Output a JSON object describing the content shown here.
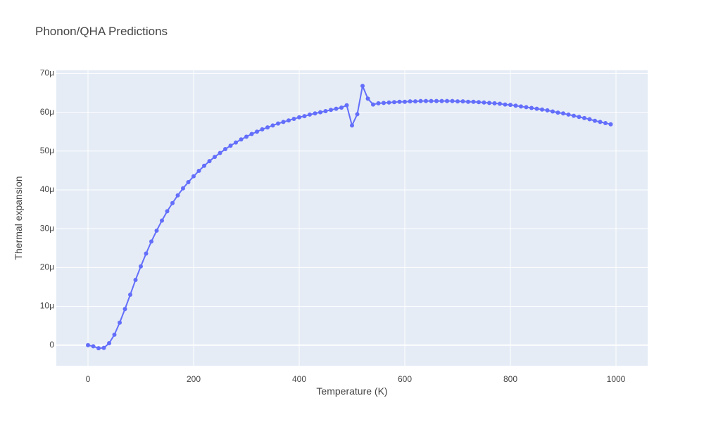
{
  "colors": {
    "plot_bg": "#e5ecf6",
    "grid": "#ffffff",
    "series": "#636efa",
    "text": "#444444"
  },
  "chart_data": {
    "type": "line",
    "title": "Phonon/QHA Predictions",
    "xlabel": "Temperature (K)",
    "ylabel": "Thermal expansion",
    "xlim": [
      -60,
      1060
    ],
    "ylim": [
      -5.3e-06,
      7.08e-05
    ],
    "grid": true,
    "mode": "lines+markers",
    "x_ticks": [
      {
        "value": 0,
        "label": "0"
      },
      {
        "value": 200,
        "label": "200"
      },
      {
        "value": 400,
        "label": "400"
      },
      {
        "value": 600,
        "label": "600"
      },
      {
        "value": 800,
        "label": "800"
      },
      {
        "value": 1000,
        "label": "1000"
      }
    ],
    "y_ticks": [
      {
        "value": 0,
        "label": "0"
      },
      {
        "value": 1e-05,
        "label": "10μ"
      },
      {
        "value": 2e-05,
        "label": "20μ"
      },
      {
        "value": 3e-05,
        "label": "30μ"
      },
      {
        "value": 4e-05,
        "label": "40μ"
      },
      {
        "value": 5e-05,
        "label": "50μ"
      },
      {
        "value": 6e-05,
        "label": "60μ"
      },
      {
        "value": 7e-05,
        "label": "70μ"
      }
    ],
    "series": [
      {
        "x": [
          0,
          10,
          20,
          30,
          40,
          50,
          60,
          70,
          80,
          90,
          100,
          110,
          120,
          130,
          140,
          150,
          160,
          170,
          180,
          190,
          200,
          210,
          220,
          230,
          240,
          250,
          260,
          270,
          280,
          290,
          300,
          310,
          320,
          330,
          340,
          350,
          360,
          370,
          380,
          390,
          400,
          410,
          420,
          430,
          440,
          450,
          460,
          470,
          480,
          490,
          500,
          510,
          520,
          530,
          540,
          550,
          560,
          570,
          580,
          590,
          600,
          610,
          620,
          630,
          640,
          650,
          660,
          670,
          680,
          690,
          700,
          710,
          720,
          730,
          740,
          750,
          760,
          770,
          780,
          790,
          800,
          810,
          820,
          830,
          840,
          850,
          860,
          870,
          880,
          890,
          900,
          910,
          920,
          930,
          940,
          950,
          960,
          970,
          980,
          990
        ],
        "y": [
          0,
          -3e-07,
          -8e-07,
          -7e-07,
          5e-07,
          2.7e-06,
          5.8e-06,
          9.3e-06,
          1.3e-05,
          1.68e-05,
          2.03e-05,
          2.36e-05,
          2.67e-05,
          2.95e-05,
          3.21e-05,
          3.45e-05,
          3.66e-05,
          3.86e-05,
          4.04e-05,
          4.2e-05,
          4.35e-05,
          4.49e-05,
          4.62e-05,
          4.74e-05,
          4.85e-05,
          4.95e-05,
          5.05e-05,
          5.14e-05,
          5.22e-05,
          5.3e-05,
          5.37e-05,
          5.44e-05,
          5.5e-05,
          5.56e-05,
          5.61e-05,
          5.66e-05,
          5.71e-05,
          5.75e-05,
          5.79e-05,
          5.83e-05,
          5.87e-05,
          5.9e-05,
          5.94e-05,
          5.97e-05,
          6e-05,
          6.03e-05,
          6.06e-05,
          6.09e-05,
          6.12e-05,
          6.18e-05,
          5.66e-05,
          5.95e-05,
          6.68e-05,
          6.35e-05,
          6.2e-05,
          6.23e-05,
          6.24e-05,
          6.25e-05,
          6.26e-05,
          6.27e-05,
          6.27e-05,
          6.28e-05,
          6.28e-05,
          6.29e-05,
          6.29e-05,
          6.29e-05,
          6.29e-05,
          6.29e-05,
          6.29e-05,
          6.29e-05,
          6.28e-05,
          6.28e-05,
          6.27e-05,
          6.27e-05,
          6.26e-05,
          6.25e-05,
          6.24e-05,
          6.23e-05,
          6.22e-05,
          6.2e-05,
          6.19e-05,
          6.17e-05,
          6.15e-05,
          6.13e-05,
          6.11e-05,
          6.09e-05,
          6.07e-05,
          6.05e-05,
          6.02e-05,
          5.99e-05,
          5.97e-05,
          5.94e-05,
          5.91e-05,
          5.88e-05,
          5.85e-05,
          5.82e-05,
          5.78e-05,
          5.75e-05,
          5.72e-05,
          5.69e-05
        ]
      }
    ]
  }
}
